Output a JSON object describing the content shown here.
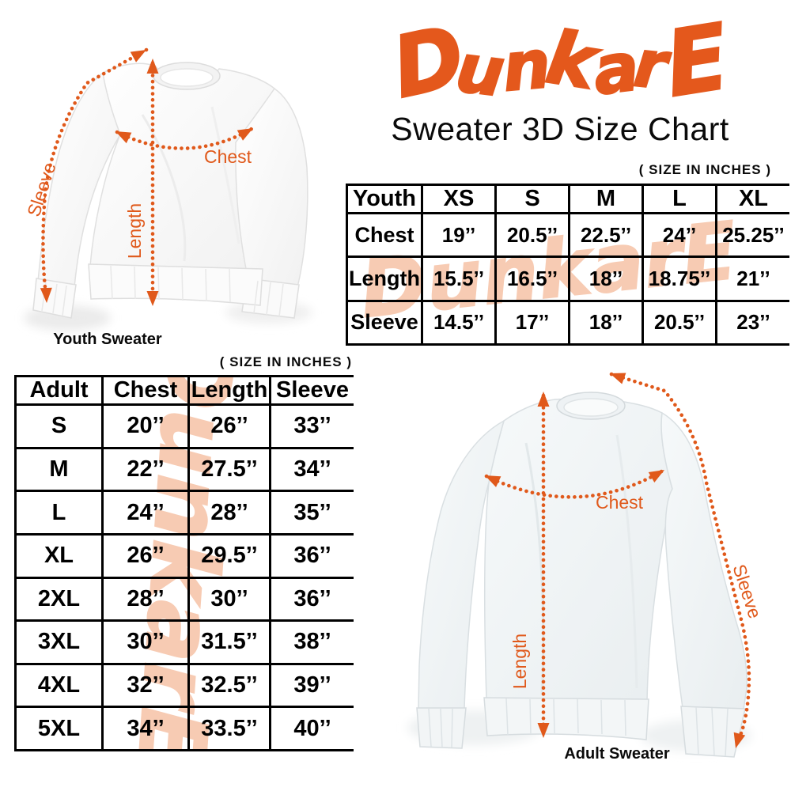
{
  "brand": {
    "logo_text": "DunkarE",
    "logo_color": "#E4581C"
  },
  "header": {
    "title": "Sweater 3D Size Chart"
  },
  "youth_section": {
    "size_note": "( SIZE IN INCHES )",
    "diagram": {
      "caption": "Youth Sweater",
      "chest_label": "Chest",
      "length_label": "Length",
      "sleeve_label": "Sleeve"
    },
    "table": {
      "header": [
        "Youth",
        "XS",
        "S",
        "M",
        "L",
        "XL"
      ],
      "rows": [
        {
          "label": "Chest",
          "values": [
            "19’’",
            "20.5’’",
            "22.5’’",
            "24’’",
            "25.25’’"
          ]
        },
        {
          "label": "Length",
          "values": [
            "15.5’’",
            "16.5’’",
            "18’’",
            "18.75’’",
            "21’’"
          ]
        },
        {
          "label": "Sleeve",
          "values": [
            "14.5’’",
            "17’’",
            "18’’",
            "20.5’’",
            "23’’"
          ]
        }
      ]
    }
  },
  "adult_section": {
    "size_note": "( SIZE IN INCHES )",
    "diagram": {
      "caption": "Adult Sweater",
      "chest_label": "Chest",
      "length_label": "Length",
      "sleeve_label": "Sleeve"
    },
    "table": {
      "header": [
        "Adult",
        "Chest",
        "Length",
        "Sleeve"
      ],
      "rows": [
        {
          "label": "S",
          "values": [
            "20’’",
            "26’’",
            "33’’"
          ]
        },
        {
          "label": "M",
          "values": [
            "22’’",
            "27.5’’",
            "34’’"
          ]
        },
        {
          "label": "L",
          "values": [
            "24’’",
            "28’’",
            "35’’"
          ]
        },
        {
          "label": "XL",
          "values": [
            "26’’",
            "29.5’’",
            "36’’"
          ]
        },
        {
          "label": "2XL",
          "values": [
            "28’’",
            "30’’",
            "36’’"
          ]
        },
        {
          "label": "3XL",
          "values": [
            "30’’",
            "31.5’’",
            "38’’"
          ]
        },
        {
          "label": "4XL",
          "values": [
            "32’’",
            "32.5’’",
            "39’’"
          ]
        },
        {
          "label": "5XL",
          "values": [
            "34’’",
            "33.5’’",
            "40’’"
          ]
        }
      ]
    }
  },
  "colors": {
    "accent": "#E0591B",
    "watermark": "#F7CBB3",
    "table_border": "#000000",
    "text": "#000000",
    "background": "#ffffff"
  }
}
